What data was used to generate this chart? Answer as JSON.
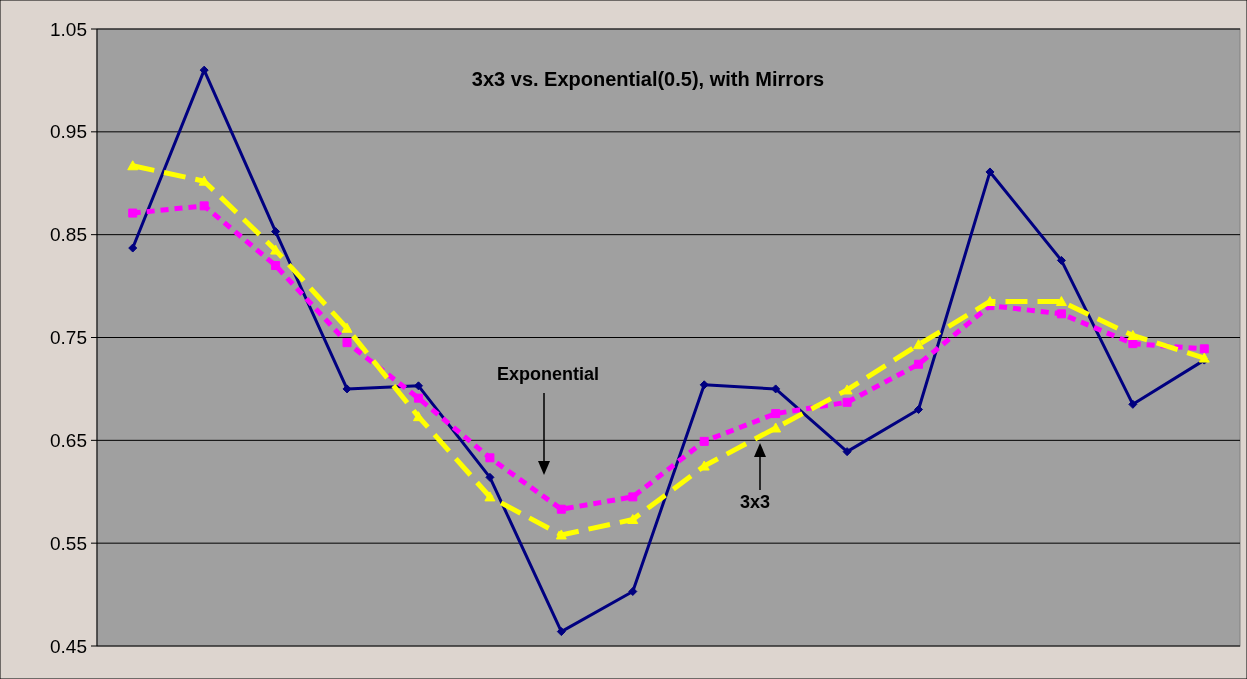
{
  "chart_data": {
    "type": "line",
    "title": "3x3 vs. Exponential(0.5), with Mirrors",
    "categories": [
      null,
      null,
      null,
      null,
      null,
      null,
      null,
      null,
      null,
      null,
      null,
      null,
      null,
      null,
      null,
      null
    ],
    "series": [
      {
        "color": "#000080",
        "marker": "diamond",
        "line_style": "solid",
        "values": [
          0.837,
          1.01,
          0.853,
          0.7,
          0.703,
          0.614,
          0.464,
          0.503,
          0.704,
          0.7,
          0.639,
          0.68,
          0.911,
          0.825,
          0.685,
          0.728
        ]
      },
      {
        "color": "#ff00ff",
        "marker": "square",
        "line_style": "dotted",
        "values": [
          0.871,
          0.878,
          0.82,
          0.745,
          0.691,
          0.633,
          0.583,
          0.595,
          0.649,
          0.676,
          0.687,
          0.724,
          0.781,
          0.773,
          0.744,
          0.739
        ]
      },
      {
        "color": "#ffff00",
        "marker": "triangle",
        "line_style": "dashed",
        "values": [
          0.917,
          0.902,
          0.835,
          0.759,
          0.673,
          0.595,
          0.558,
          0.573,
          0.625,
          0.662,
          0.699,
          0.743,
          0.785,
          0.785,
          0.752,
          0.73
        ]
      }
    ],
    "ylim": [
      0.45,
      1.05
    ],
    "yticks": [
      0.45,
      0.55,
      0.65,
      0.75,
      0.85,
      0.95,
      1.05
    ],
    "grid": "y",
    "annotations": [
      "Exponential",
      "3x3"
    ]
  }
}
